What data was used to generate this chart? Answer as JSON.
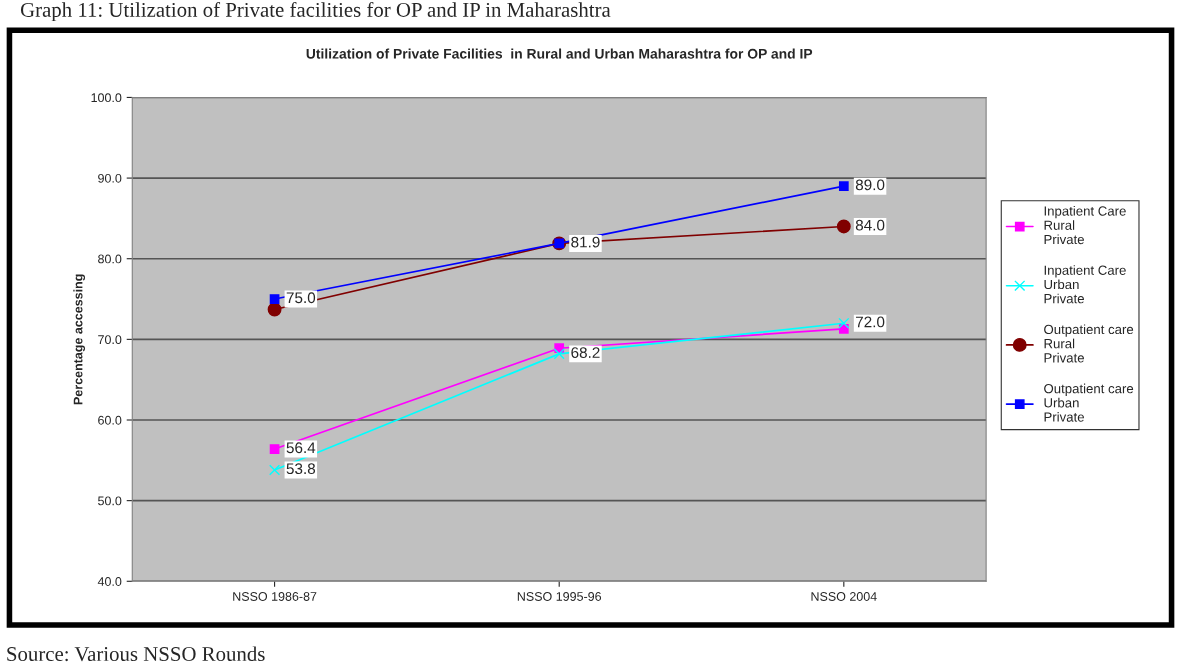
{
  "chart_data": {
    "type": "line",
    "title": "Utilization of Private Facilities  in Rural and Urban Maharashtra for OP and IP",
    "ylabel": "Percentage accessing",
    "categories": [
      "NSSO 1986-87",
      "NSSO 1995-96",
      "NSSO 2004"
    ],
    "series": [
      {
        "name": "Inpatient Care\nRural\nPrivate",
        "color": "#ff00ff",
        "marker": "square",
        "values": [
          56.4,
          68.9,
          71.3
        ],
        "value_labels": [
          "56.4",
          null,
          null
        ]
      },
      {
        "name": "Inpatient Care\nUrban\nPrivate",
        "color": "#00ffff",
        "marker": "cross",
        "values": [
          53.8,
          68.2,
          72.0
        ],
        "value_labels": [
          "53.8",
          "68.2",
          "72.0"
        ]
      },
      {
        "name": "Outpatient care\nRural\nPrivate",
        "color": "#800000",
        "marker": "circle",
        "values": [
          73.7,
          81.9,
          84.0
        ],
        "value_labels": [
          null,
          null,
          "84.0"
        ]
      },
      {
        "name": "Outpatient care\nUrban\nPrivate",
        "color": "#0000ff",
        "marker": "square",
        "values": [
          75.0,
          81.9,
          89.0
        ],
        "value_labels": [
          "75.0",
          "81.9",
          "89.0"
        ]
      }
    ],
    "ylim": [
      40,
      100
    ],
    "yticks": [
      {
        "value": 40,
        "label": "40.0"
      },
      {
        "value": 50,
        "label": "50.0"
      },
      {
        "value": 60,
        "label": "60.0"
      },
      {
        "value": 70,
        "label": "70.0"
      },
      {
        "value": 80,
        "label": "80.0"
      },
      {
        "value": 90,
        "label": "90.0"
      },
      {
        "value": 100,
        "label": "100.0"
      }
    ],
    "grid": "y",
    "legend": "right",
    "annotations": [
      "Graph 11: Utilization of Private facilities for OP and IP in Maharashtra",
      "Source: Various NSSO Rounds"
    ]
  }
}
